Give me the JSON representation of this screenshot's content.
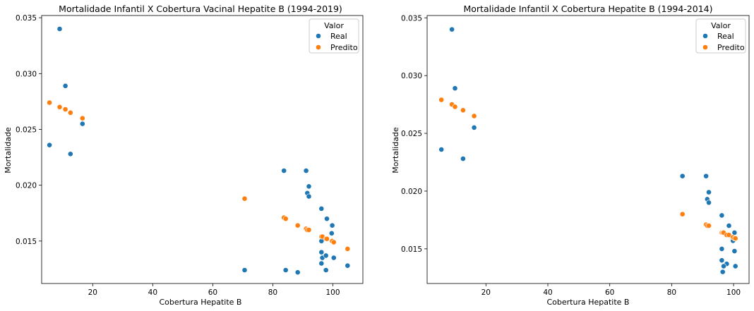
{
  "figure": {
    "background": "#ffffff",
    "colors": {
      "Real": "#1f77b4",
      "Predito": "#ff7f0e"
    }
  },
  "chart_data": [
    {
      "type": "scatter",
      "title": "Mortalidade Infantil X Cobertura Vacinal Hepatite B (1994-2019)",
      "xlabel": "Cobertura Hepatite B",
      "ylabel": "Mortalidade",
      "xlim": [
        3,
        110
      ],
      "ylim": [
        0.0112,
        0.0352
      ],
      "xticks": [
        20,
        40,
        60,
        80,
        100
      ],
      "xtick_labels": [
        "20",
        "40",
        "60",
        "80",
        "100"
      ],
      "yticks": [
        0.015,
        0.02,
        0.025,
        0.03,
        0.035
      ],
      "ytick_labels": [
        "0.015",
        "0.020",
        "0.025",
        "0.030",
        "0.035"
      ],
      "grid": false,
      "legend": {
        "title": "Valor",
        "position": "top-right",
        "entries": [
          "Real",
          "Predito"
        ]
      },
      "series": [
        {
          "name": "Real",
          "color": "#1f77b4",
          "points": [
            [
              9.0,
              0.034
            ],
            [
              10.9,
              0.0289
            ],
            [
              16.6,
              0.0255
            ],
            [
              5.6,
              0.0236
            ],
            [
              12.6,
              0.0228
            ],
            [
              83.7,
              0.0213
            ],
            [
              91.1,
              0.0213
            ],
            [
              92.0,
              0.0199
            ],
            [
              91.5,
              0.0193
            ],
            [
              92.0,
              0.019
            ],
            [
              96.2,
              0.0179
            ],
            [
              98.0,
              0.017
            ],
            [
              99.8,
              0.0164
            ],
            [
              99.6,
              0.0157
            ],
            [
              96.2,
              0.015
            ],
            [
              96.2,
              0.014
            ],
            [
              96.5,
              0.0135
            ],
            [
              97.7,
              0.0137
            ],
            [
              100.3,
              0.0135
            ],
            [
              96.2,
              0.013
            ],
            [
              104.9,
              0.0128
            ],
            [
              70.6,
              0.0124
            ],
            [
              84.3,
              0.0124
            ],
            [
              97.7,
              0.0124
            ],
            [
              88.3,
              0.0122
            ]
          ]
        },
        {
          "name": "Predito",
          "color": "#ff7f0e",
          "points": [
            [
              5.6,
              0.0274
            ],
            [
              9.0,
              0.027
            ],
            [
              10.9,
              0.0268
            ],
            [
              12.6,
              0.0265
            ],
            [
              16.6,
              0.026
            ],
            [
              70.6,
              0.0188
            ],
            [
              83.7,
              0.0171
            ],
            [
              84.3,
              0.017
            ],
            [
              88.3,
              0.0164
            ],
            [
              91.1,
              0.0161
            ],
            [
              91.5,
              0.016
            ],
            [
              92.0,
              0.016
            ],
            [
              96.2,
              0.0154
            ],
            [
              96.5,
              0.0154
            ],
            [
              97.7,
              0.0152
            ],
            [
              98.0,
              0.0152
            ],
            [
              99.6,
              0.015
            ],
            [
              99.8,
              0.015
            ],
            [
              100.3,
              0.0149
            ],
            [
              104.9,
              0.0143
            ]
          ]
        }
      ]
    },
    {
      "type": "scatter",
      "title": "Mortalidade Infantil X Cobertura Hepatite B (1994-2014)",
      "xlabel": "Cobertura Hepatite B",
      "ylabel": "Mortalidade",
      "xlim": [
        1,
        105
      ],
      "ylim": [
        0.012,
        0.0352
      ],
      "xticks": [
        20,
        40,
        60,
        80,
        100
      ],
      "xtick_labels": [
        "20",
        "40",
        "60",
        "80",
        "100"
      ],
      "yticks": [
        0.015,
        0.02,
        0.025,
        0.03,
        0.035
      ],
      "ytick_labels": [
        "0.015",
        "0.020",
        "0.025",
        "0.030",
        "0.035"
      ],
      "grid": false,
      "legend": {
        "title": "Valor",
        "position": "top-right",
        "entries": [
          "Real",
          "Predito"
        ]
      },
      "series": [
        {
          "name": "Real",
          "color": "#1f77b4",
          "points": [
            [
              9.0,
              0.034
            ],
            [
              10.0,
              0.0289
            ],
            [
              16.2,
              0.0255
            ],
            [
              5.6,
              0.0236
            ],
            [
              12.6,
              0.0228
            ],
            [
              83.5,
              0.0213
            ],
            [
              91.1,
              0.0213
            ],
            [
              92.0,
              0.0199
            ],
            [
              91.5,
              0.0193
            ],
            [
              92.0,
              0.019
            ],
            [
              96.2,
              0.0179
            ],
            [
              98.5,
              0.017
            ],
            [
              100.3,
              0.0164
            ],
            [
              99.8,
              0.0157
            ],
            [
              96.2,
              0.015
            ],
            [
              100.3,
              0.0148
            ],
            [
              96.2,
              0.014
            ],
            [
              97.8,
              0.0137
            ],
            [
              96.8,
              0.0135
            ],
            [
              100.6,
              0.0135
            ],
            [
              96.5,
              0.013
            ]
          ]
        },
        {
          "name": "Predito",
          "color": "#ff7f0e",
          "points": [
            [
              5.6,
              0.0279
            ],
            [
              9.0,
              0.0275
            ],
            [
              10.0,
              0.0273
            ],
            [
              12.6,
              0.027
            ],
            [
              16.2,
              0.0265
            ],
            [
              83.5,
              0.018
            ],
            [
              91.1,
              0.0171
            ],
            [
              91.5,
              0.017
            ],
            [
              92.0,
              0.017
            ],
            [
              96.2,
              0.0164
            ],
            [
              96.5,
              0.0164
            ],
            [
              96.8,
              0.0164
            ],
            [
              97.8,
              0.0162
            ],
            [
              98.5,
              0.0162
            ],
            [
              99.8,
              0.016
            ],
            [
              100.3,
              0.0159
            ],
            [
              100.6,
              0.0159
            ]
          ]
        }
      ]
    }
  ]
}
